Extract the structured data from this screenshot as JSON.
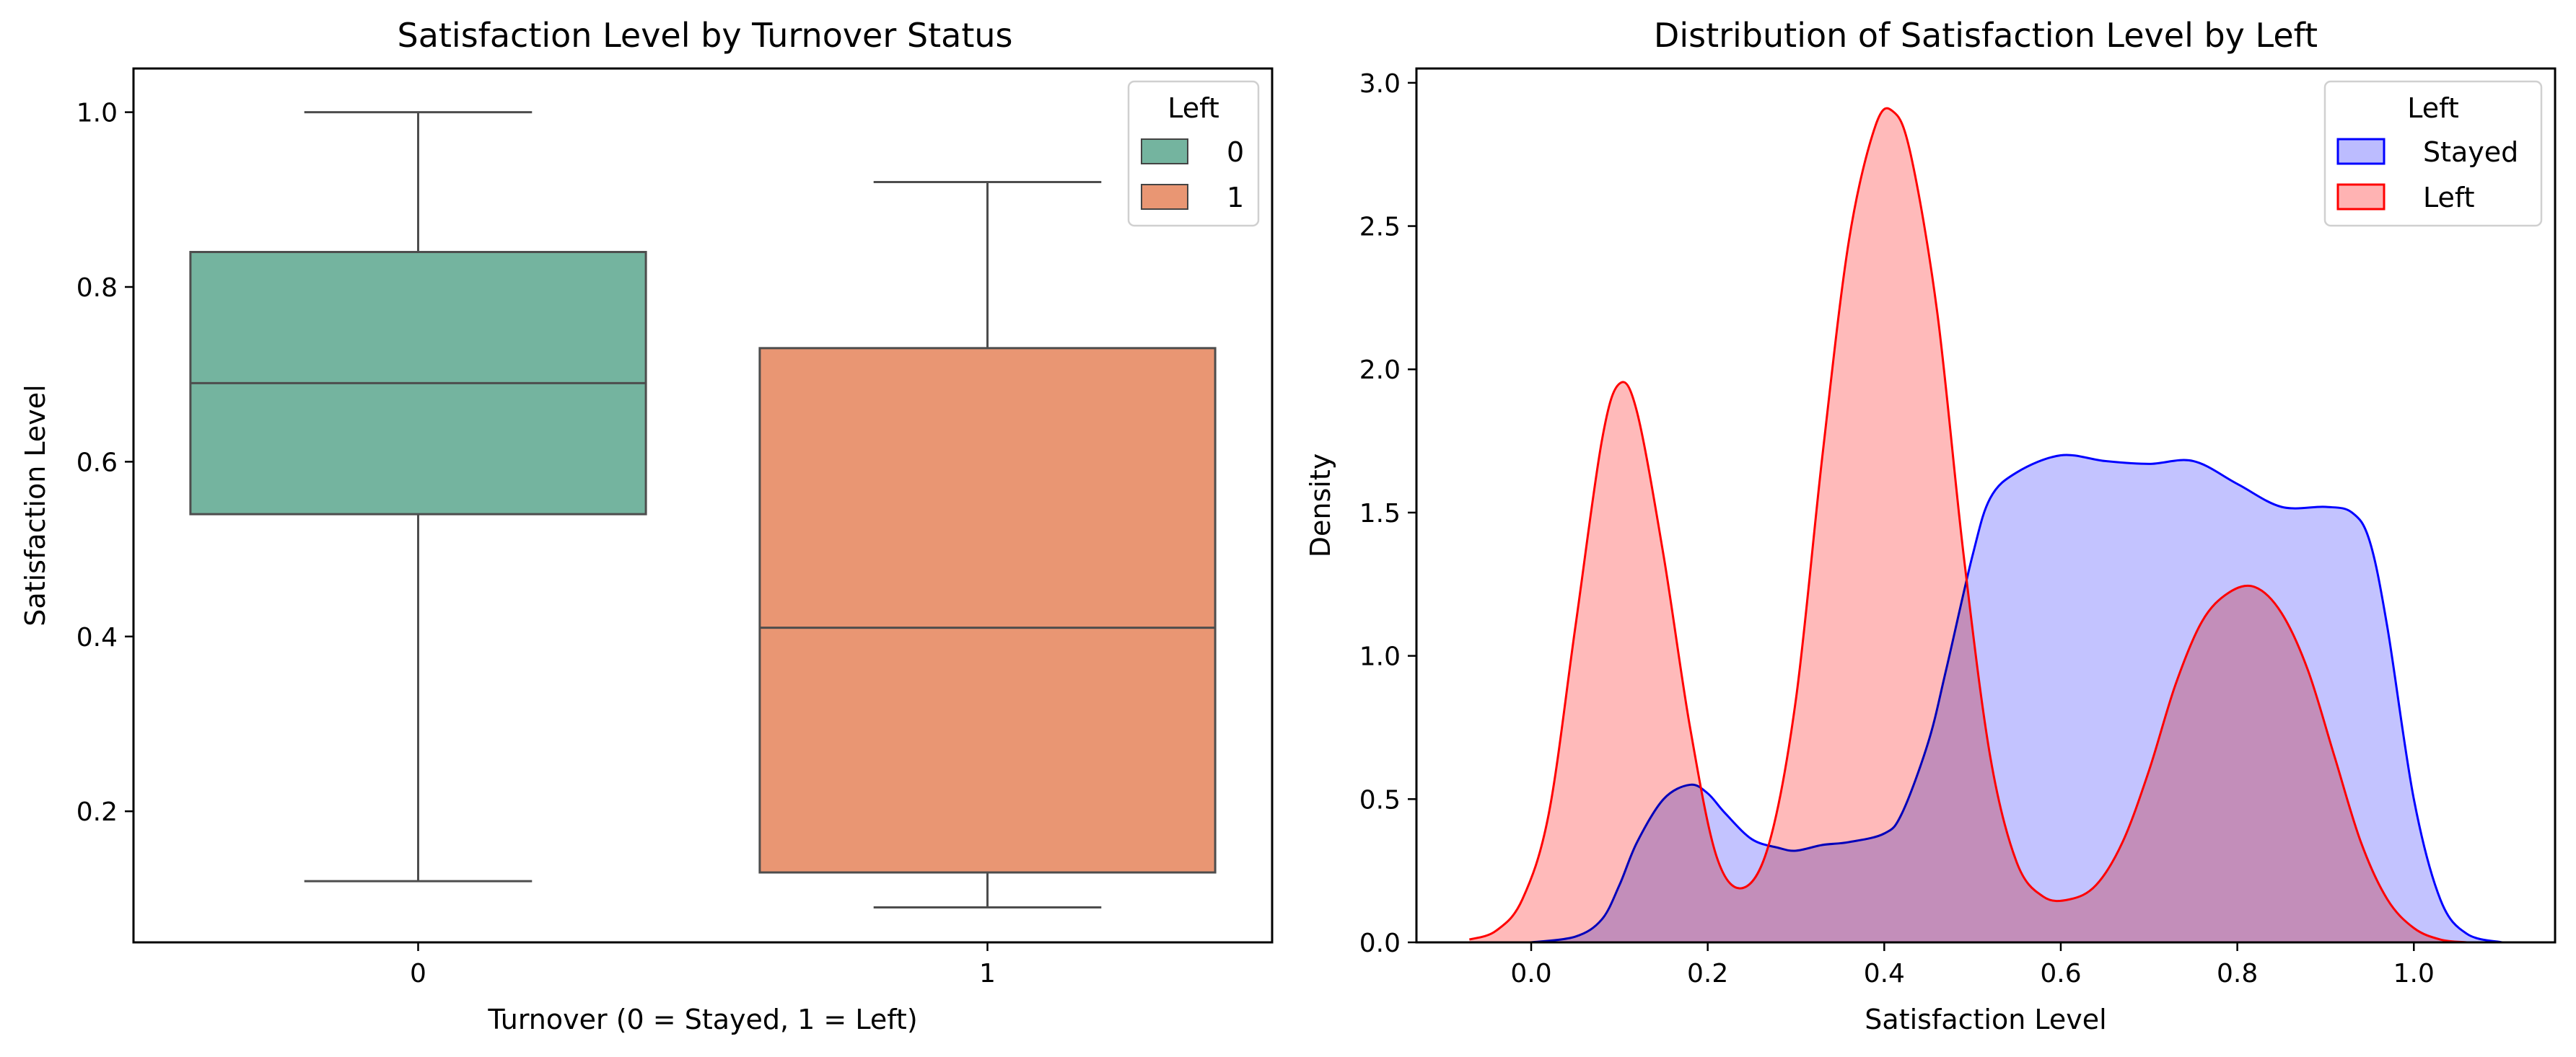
{
  "chart_data": [
    {
      "type": "box",
      "title": "Satisfaction Level by Turnover Status",
      "xlabel": "Turnover (0 = Stayed, 1 = Left)",
      "ylabel": "Satisfaction Level",
      "categories": [
        "0",
        "1"
      ],
      "ylim": [
        0.05,
        1.05
      ],
      "yticks": [
        "0.2",
        "0.4",
        "0.6",
        "0.8",
        "1.0"
      ],
      "grid": false,
      "legend": {
        "title": "Left",
        "placement": "top-right",
        "entries": [
          {
            "label": "0",
            "color": "#74b49f"
          },
          {
            "label": "1",
            "color": "#e99673"
          }
        ]
      },
      "boxes": [
        {
          "category": "0",
          "whisker_low": 0.12,
          "q1": 0.54,
          "median": 0.69,
          "q3": 0.84,
          "whisker_high": 1.0,
          "color": "#74b49f"
        },
        {
          "category": "1",
          "whisker_low": 0.09,
          "q1": 0.13,
          "median": 0.41,
          "q3": 0.73,
          "whisker_high": 0.92,
          "color": "#e99673"
        }
      ]
    },
    {
      "type": "area",
      "title": "Distribution of Satisfaction Level by Left",
      "xlabel": "Satisfaction Level",
      "ylabel": "Density",
      "xlim": [
        -0.13,
        1.16
      ],
      "ylim": [
        0,
        3.05
      ],
      "xticks": [
        "0.0",
        "0.2",
        "0.4",
        "0.6",
        "0.8",
        "1.0"
      ],
      "yticks": [
        "0.0",
        "0.5",
        "1.0",
        "1.5",
        "2.0",
        "2.5",
        "3.0"
      ],
      "grid": false,
      "legend": {
        "title": "Left",
        "placement": "top-right",
        "entries": [
          {
            "label": "Stayed",
            "color": "#0000ff"
          },
          {
            "label": "Left",
            "color": "#ff0000"
          }
        ]
      },
      "series": [
        {
          "name": "Stayed",
          "line_color": "#0000ff",
          "fill_color": "#bcbcff",
          "x": [
            0.0,
            0.05,
            0.08,
            0.1,
            0.12,
            0.15,
            0.18,
            0.2,
            0.22,
            0.25,
            0.28,
            0.3,
            0.33,
            0.36,
            0.4,
            0.42,
            0.45,
            0.47,
            0.5,
            0.52,
            0.55,
            0.6,
            0.65,
            0.7,
            0.75,
            0.8,
            0.85,
            0.9,
            0.93,
            0.95,
            0.97,
            1.0,
            1.03,
            1.06,
            1.1
          ],
          "y": [
            0.0,
            0.02,
            0.08,
            0.2,
            0.35,
            0.5,
            0.55,
            0.52,
            0.45,
            0.36,
            0.33,
            0.32,
            0.34,
            0.35,
            0.38,
            0.45,
            0.7,
            0.95,
            1.35,
            1.55,
            1.64,
            1.7,
            1.68,
            1.67,
            1.68,
            1.6,
            1.52,
            1.52,
            1.5,
            1.4,
            1.1,
            0.5,
            0.15,
            0.03,
            0.0
          ]
        },
        {
          "name": "Left",
          "line_color": "#ff0000",
          "fill_color": "#ffb3b3",
          "x": [
            -0.07,
            -0.04,
            -0.01,
            0.02,
            0.05,
            0.08,
            0.1,
            0.12,
            0.15,
            0.18,
            0.21,
            0.24,
            0.27,
            0.3,
            0.33,
            0.36,
            0.39,
            0.41,
            0.43,
            0.46,
            0.49,
            0.52,
            0.55,
            0.58,
            0.61,
            0.64,
            0.67,
            0.7,
            0.73,
            0.76,
            0.79,
            0.82,
            0.85,
            0.88,
            0.91,
            0.94,
            0.97,
            1.0,
            1.03,
            1.06
          ],
          "y": [
            0.01,
            0.04,
            0.15,
            0.45,
            1.1,
            1.75,
            1.95,
            1.85,
            1.35,
            0.75,
            0.3,
            0.19,
            0.35,
            0.85,
            1.7,
            2.45,
            2.85,
            2.9,
            2.75,
            2.2,
            1.35,
            0.65,
            0.28,
            0.16,
            0.15,
            0.2,
            0.35,
            0.6,
            0.9,
            1.12,
            1.22,
            1.24,
            1.15,
            0.95,
            0.65,
            0.35,
            0.15,
            0.05,
            0.01,
            0.0
          ]
        }
      ]
    }
  ]
}
